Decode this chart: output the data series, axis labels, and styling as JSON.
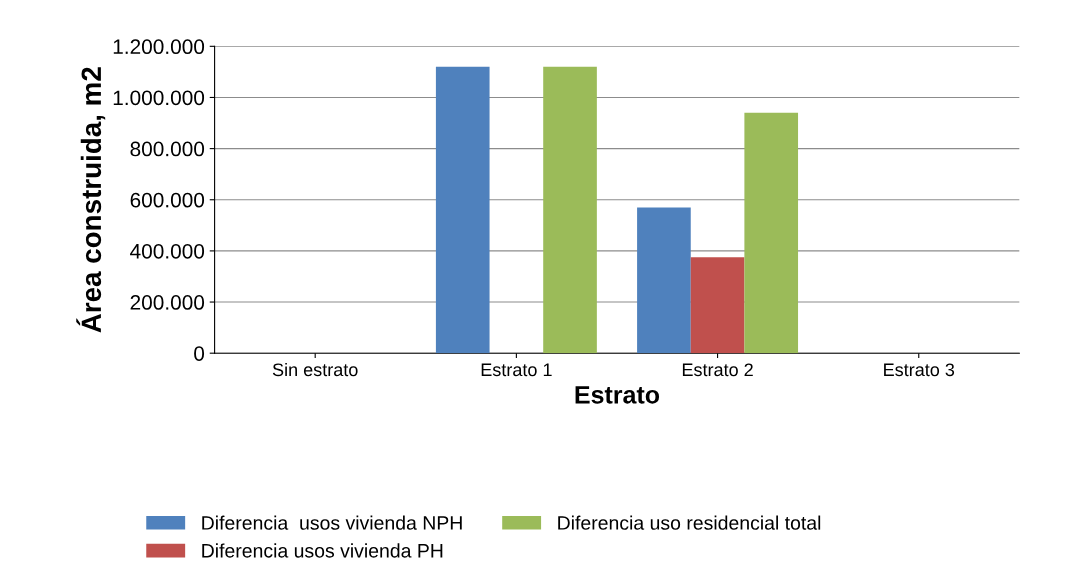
{
  "chart_data": {
    "type": "bar",
    "xlabel": "Estrato",
    "ylabel": "Área construida, m2",
    "categories": [
      "Sin estrato",
      "Estrato 1",
      "Estrato 2",
      "Estrato 3"
    ],
    "series": [
      {
        "name": "Diferencia  usos vivienda NPH",
        "color": "#4f81bd",
        "values": [
          0,
          1120000,
          570000,
          0
        ]
      },
      {
        "name": "Diferencia usos vivienda PH",
        "color": "#c0504d",
        "values": [
          0,
          0,
          375000,
          0
        ]
      },
      {
        "name": "Diferencia uso residencial total",
        "color": "#9bbb59",
        "values": [
          0,
          1120000,
          940000,
          0
        ]
      }
    ],
    "ylim": [
      0,
      1200000
    ],
    "yticks": [
      {
        "value": 0,
        "label": "0"
      },
      {
        "value": 200000,
        "label": "200.000"
      },
      {
        "value": 400000,
        "label": "400.000"
      },
      {
        "value": 600000,
        "label": "600.000"
      },
      {
        "value": 800000,
        "label": "800.000"
      },
      {
        "value": 1000000,
        "label": "1.000.000"
      },
      {
        "value": 1200000,
        "label": "1.200.000"
      }
    ],
    "grid": "y",
    "legend": "bottom"
  }
}
